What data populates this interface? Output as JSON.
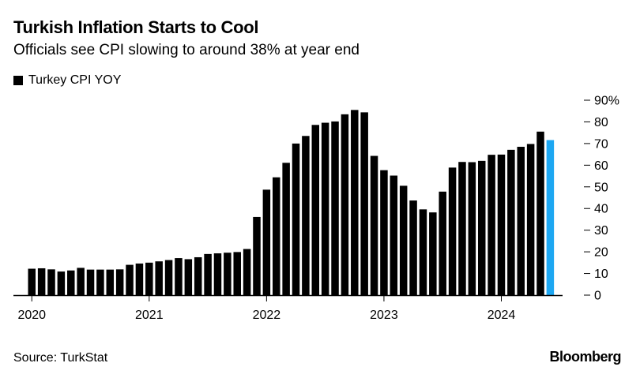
{
  "header": {
    "title": "Turkish Inflation Starts to Cool",
    "subtitle": "Officials see CPI slowing to around 38% at year end"
  },
  "legend": {
    "label": "Turkey CPI YOY",
    "color": "#000000"
  },
  "footer": {
    "source": "Source: TurkStat",
    "brand": "Bloomberg"
  },
  "colors": {
    "bar": "#000000",
    "highlight": "#1DA7F2"
  },
  "chart_data": {
    "type": "bar",
    "title": "Turkish Inflation Starts to Cool",
    "subtitle": "Officials see CPI slowing to around 38% at year end",
    "xlabel": "",
    "ylabel": "",
    "ylim": [
      0,
      90
    ],
    "yticks": [
      0,
      10,
      20,
      30,
      40,
      50,
      60,
      70,
      80,
      90
    ],
    "ytick_labels": [
      "0",
      "10",
      "20",
      "30",
      "40",
      "50",
      "60",
      "70",
      "80",
      "90%"
    ],
    "xtick_labels": [
      "2020",
      "2021",
      "2022",
      "2023",
      "2024"
    ],
    "series": [
      {
        "name": "Turkey CPI YOY",
        "categories": [
          "2020-01",
          "2020-02",
          "2020-03",
          "2020-04",
          "2020-05",
          "2020-06",
          "2020-07",
          "2020-08",
          "2020-09",
          "2020-10",
          "2020-11",
          "2020-12",
          "2021-01",
          "2021-02",
          "2021-03",
          "2021-04",
          "2021-05",
          "2021-06",
          "2021-07",
          "2021-08",
          "2021-09",
          "2021-10",
          "2021-11",
          "2021-12",
          "2022-01",
          "2022-02",
          "2022-03",
          "2022-04",
          "2022-05",
          "2022-06",
          "2022-07",
          "2022-08",
          "2022-09",
          "2022-10",
          "2022-11",
          "2022-12",
          "2023-01",
          "2023-02",
          "2023-03",
          "2023-04",
          "2023-05",
          "2023-06",
          "2023-07",
          "2023-08",
          "2023-09",
          "2023-10",
          "2023-11",
          "2023-12",
          "2024-01",
          "2024-02",
          "2024-03",
          "2024-04",
          "2024-05",
          "2024-06"
        ],
        "values": [
          12.2,
          12.4,
          11.9,
          10.9,
          11.4,
          12.6,
          11.8,
          11.8,
          11.8,
          11.9,
          14.0,
          14.6,
          15.0,
          15.6,
          16.2,
          17.1,
          16.6,
          17.5,
          19.0,
          19.3,
          19.6,
          19.9,
          21.3,
          36.1,
          48.7,
          54.4,
          61.1,
          70.0,
          73.5,
          78.6,
          79.6,
          80.2,
          83.5,
          85.5,
          84.4,
          64.3,
          57.7,
          55.2,
          50.5,
          43.7,
          39.6,
          38.2,
          47.8,
          58.9,
          61.5,
          61.4,
          62.0,
          64.8,
          64.9,
          67.1,
          68.5,
          69.8,
          75.5,
          71.6
        ],
        "highlight_last": true
      }
    ]
  }
}
